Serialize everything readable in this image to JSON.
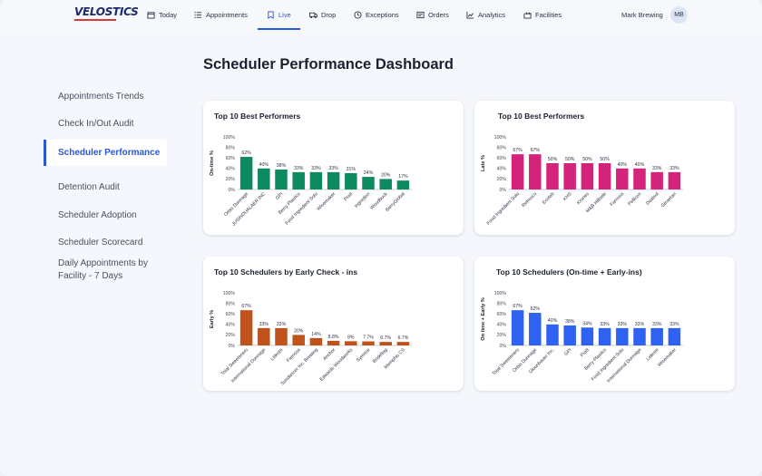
{
  "app": {
    "logo": "VELOSTICS",
    "user_name": "Mark Brewing",
    "user_initials": "MB",
    "accent": "#2a57d6"
  },
  "nav": [
    {
      "label": "Today",
      "icon": "calendar-icon"
    },
    {
      "label": "Appointments",
      "icon": "list-icon"
    },
    {
      "label": "Live",
      "icon": "bookmark-icon",
      "active": true
    },
    {
      "label": "Drop",
      "icon": "truck-icon"
    },
    {
      "label": "Exceptions",
      "icon": "clock-icon"
    },
    {
      "label": "Orders",
      "icon": "orders-icon"
    },
    {
      "label": "Analytics",
      "icon": "chart-line-icon"
    },
    {
      "label": "Facilities",
      "icon": "facility-icon"
    }
  ],
  "page_title": "Scheduler Performance Dashboard",
  "sidebar": [
    {
      "label": "Appointments Trends"
    },
    {
      "label": "Check In/Out  Audit"
    },
    {
      "label": "Scheduler Performance",
      "active": true
    },
    {
      "label": "Detention Audit"
    },
    {
      "label": "Scheduler Adoption"
    },
    {
      "label": "Scheduler  Scorecard"
    },
    {
      "label": "Daily Appointments by Facility - 7 Days"
    }
  ],
  "charts": [
    {
      "title": "Top 10 Best Performers",
      "color": "#0e8a5f",
      "chart_data": {
        "type": "bar",
        "ylabel": "On-time %",
        "yticks": [
          "0%",
          "20%",
          "40%",
          "60%",
          "80%",
          "100%"
        ],
        "ylim": [
          0,
          100
        ],
        "categories": [
          "Orbis Dunnage",
          "JUSINDUALAER INC",
          "GPI",
          "Berry Plastics",
          "Food Ingredient Solu",
          "Wisemaker",
          "Pratt",
          "Ingredion",
          "Woodbuck",
          "BerryGlobal"
        ],
        "values": [
          62,
          40,
          38,
          33,
          33,
          33,
          31,
          24,
          20,
          17
        ],
        "labels": [
          "62%",
          "40%",
          "38%",
          "33%",
          "33%",
          "33%",
          "31%",
          "24%",
          "20%",
          "17%"
        ]
      }
    },
    {
      "title": "Top 10 Best Performers",
      "color": "#d4237a",
      "chart_data": {
        "type": "bar",
        "ylabel": "Late %",
        "yticks": [
          "0%",
          "20%",
          "40%",
          "60%",
          "80%",
          "100%"
        ],
        "ylim": [
          0,
          100
        ],
        "categories": [
          "Food Ingredient Solu",
          "Refresco",
          "Ecolab",
          "KHS",
          "Krones",
          "M&B Hillside",
          "Farnosa",
          "Pellicon",
          "Dualsol",
          "Ginaetan"
        ],
        "values": [
          67,
          67,
          50,
          50,
          50,
          50,
          40,
          40,
          33,
          33
        ],
        "labels": [
          "67%",
          "67%",
          "50%",
          "50%",
          "50%",
          "50%",
          "40%",
          "40%",
          "33%",
          "33%"
        ]
      }
    },
    {
      "title": "Top 10 Schedulers by Early Check - ins",
      "color": "#c0521c",
      "chart_data": {
        "type": "bar",
        "ylabel": "Early %",
        "yticks": [
          "0%",
          "20%",
          "40%",
          "60%",
          "80%",
          "100%"
        ],
        "ylim": [
          0,
          100
        ],
        "categories": [
          "Total Sweeteners",
          "International Dunnage",
          "Lidestri",
          "Farnosa",
          "Sundancer Inc. Brewing",
          "Anchor",
          "Edwards Woodworks",
          "Symrise",
          "Bodeltag",
          "Memphis CS"
        ],
        "values": [
          67,
          33,
          33,
          20,
          14,
          8.8,
          8,
          7.7,
          6.7,
          6.7
        ],
        "labels": [
          "67%",
          "33%",
          "33%",
          "20%",
          "14%",
          "8.8%",
          "8%",
          "7.7%",
          "6.7%",
          "6.7%"
        ]
      }
    },
    {
      "title": "Top 10 Schedulers (On-time + Early-ins)",
      "color": "#2f62f0",
      "chart_data": {
        "type": "bar",
        "ylabel": "On time + Early %",
        "yticks": [
          "0%",
          "20%",
          "40%",
          "60%",
          "80%",
          "100%"
        ],
        "ylim": [
          0,
          100
        ],
        "categories": [
          "Total Sweeteners",
          "Orbis Dunnage",
          "Glounbauer Inc.",
          "GPI",
          "Pratt",
          "Berry Plastics",
          "Food Ingredient Solu",
          "International Dunnage",
          "Lidestri",
          "Wisemaker"
        ],
        "values": [
          67,
          62,
          40,
          38,
          34,
          33,
          33,
          33,
          33,
          33
        ],
        "labels": [
          "67%",
          "62%",
          "40%",
          "38%",
          "34%",
          "33%",
          "33%",
          "33%",
          "33%",
          "33%"
        ]
      }
    }
  ]
}
